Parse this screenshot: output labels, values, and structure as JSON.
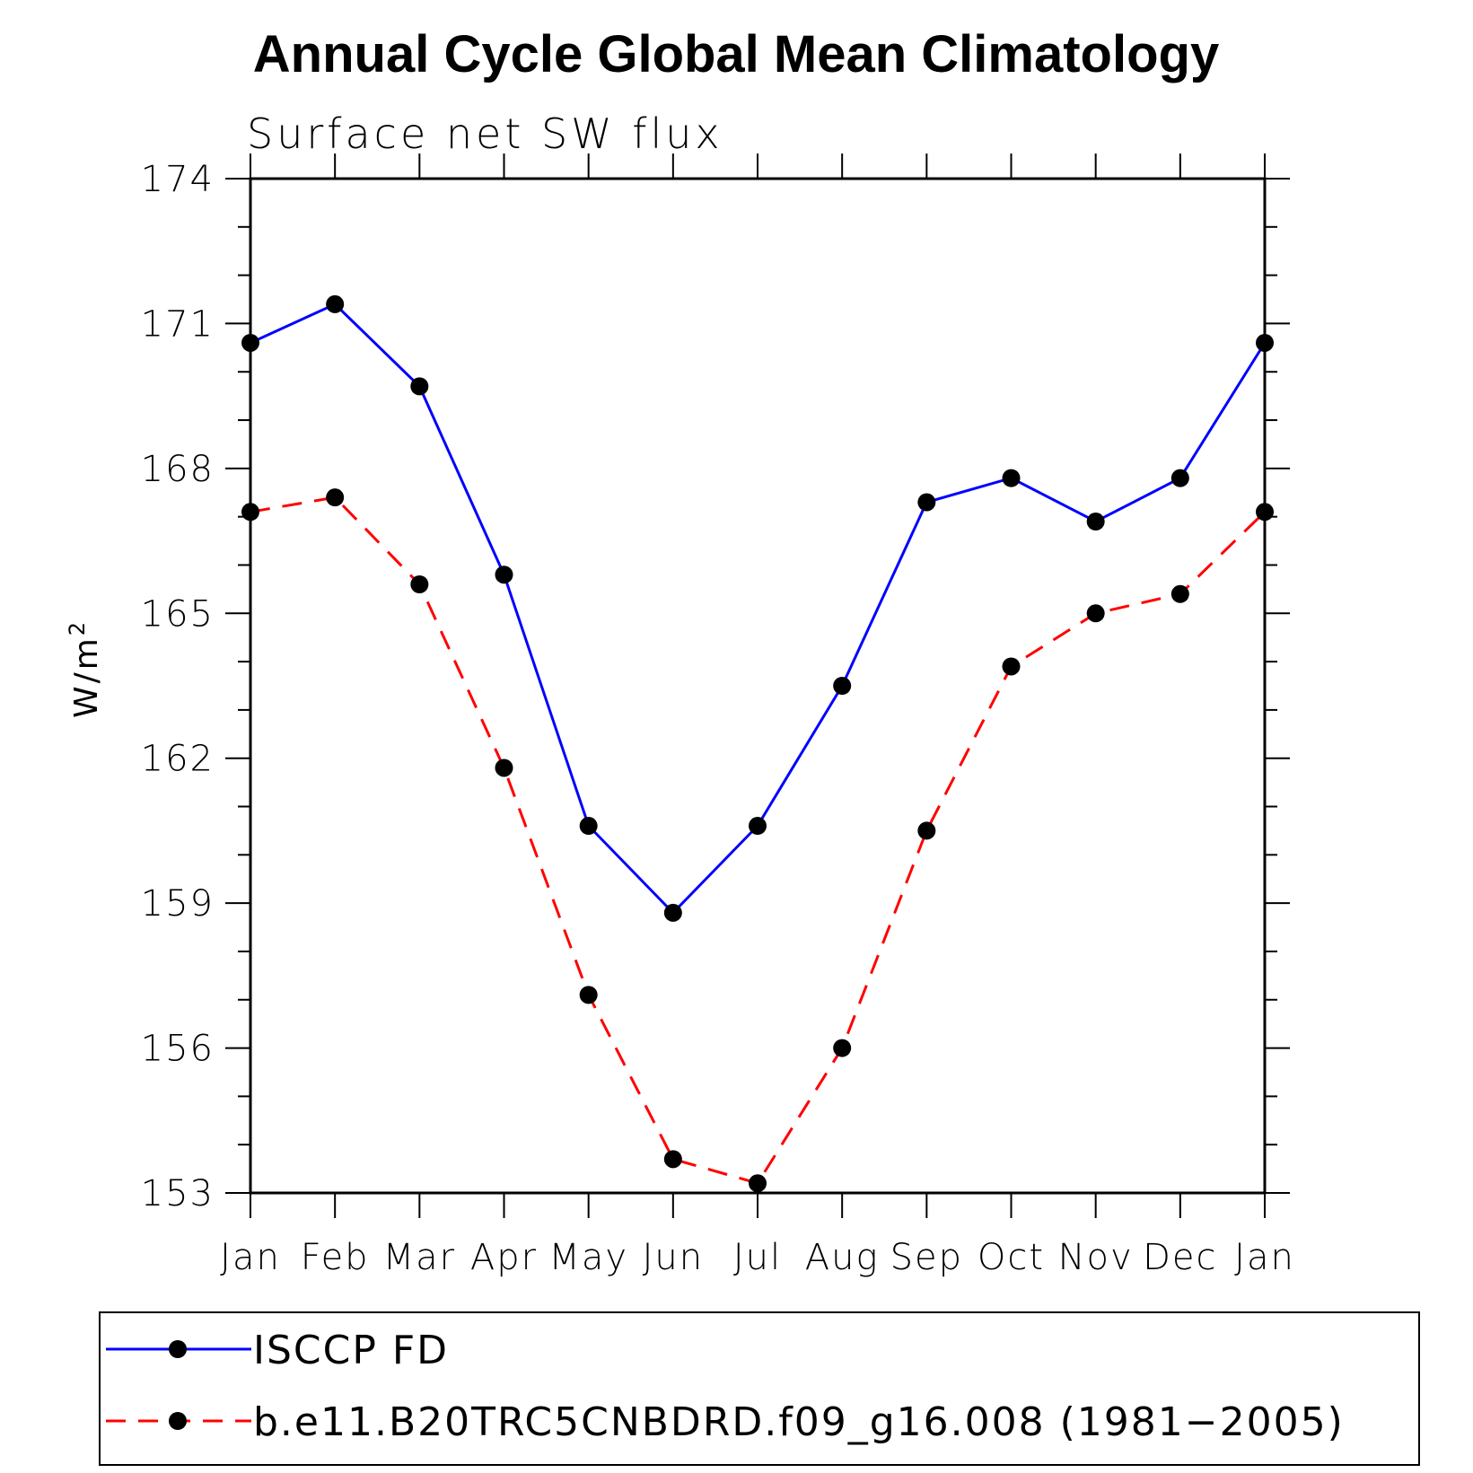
{
  "chart_data": {
    "type": "line",
    "title": "Annual Cycle Global Mean Climatology",
    "subtitle": "Surface net SW flux",
    "ylabel": "W/m",
    "ylabel_superscript": "2",
    "ylim": [
      153,
      174
    ],
    "yticks": [
      153,
      156,
      159,
      162,
      165,
      168,
      171,
      174
    ],
    "categories": [
      "Jan",
      "Feb",
      "Mar",
      "Apr",
      "May",
      "Jun",
      "Jul",
      "Aug",
      "Sep",
      "Oct",
      "Nov",
      "Dec",
      "Jan"
    ],
    "legend_position": "bottom",
    "grid": false,
    "series": [
      {
        "name": "ISCCP FD",
        "color": "#0000ff",
        "dash": "solid",
        "values": [
          170.6,
          171.4,
          169.7,
          165.8,
          160.6,
          158.8,
          160.6,
          163.5,
          167.3,
          167.8,
          166.9,
          167.8,
          170.6
        ]
      },
      {
        "name": "b.e11.B20TRC5CNBDRD.f09_g16.008 (1981−2005)",
        "color": "#ff0000",
        "dash": "dashed",
        "values": [
          167.1,
          167.4,
          165.6,
          161.8,
          157.1,
          153.7,
          153.2,
          156.0,
          160.5,
          163.9,
          165.0,
          165.4,
          167.1
        ]
      }
    ]
  }
}
